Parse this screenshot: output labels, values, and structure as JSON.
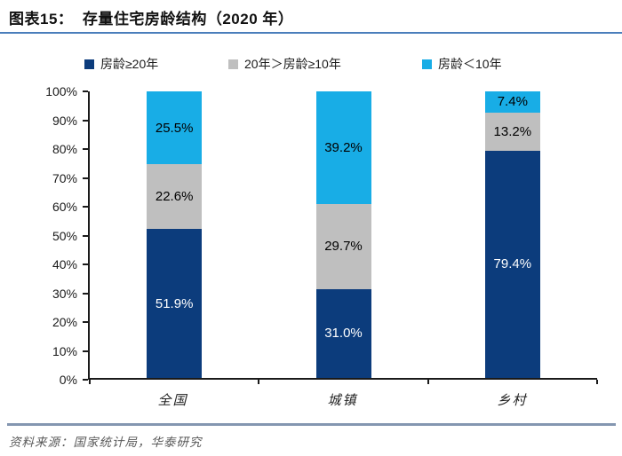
{
  "header": {
    "title": "图表15：  存量住宅房龄结构（2020 年）"
  },
  "chart_data": {
    "type": "bar",
    "subtype": "stacked-column",
    "title": "存量住宅房龄结构（2020 年）",
    "categories": [
      "全国",
      "城镇",
      "乡村"
    ],
    "series": [
      {
        "name": "房龄≥20年",
        "color": "#0c3c7c",
        "label_color": "#ffffff",
        "values": [
          51.9,
          31.0,
          79.4
        ]
      },
      {
        "name": "20年＞房龄≥10年",
        "color": "#bfbfbf",
        "label_color": "#000000",
        "values": [
          22.6,
          29.7,
          13.2
        ]
      },
      {
        "name": "房龄＜10年",
        "color": "#18ade6",
        "label_color": "#000000",
        "values": [
          25.5,
          39.2,
          7.4
        ]
      }
    ],
    "xlabel": "",
    "ylabel": "",
    "ylim": [
      0,
      100
    ],
    "ytick_step": 10,
    "ytick_suffix": "%",
    "value_suffix": "%",
    "value_decimals": 1,
    "legend_position": "top",
    "grid": false
  },
  "footer": {
    "source": "资料来源：国家统计局，华泰研究"
  },
  "colors": {
    "title_rule": "#4a7ebb",
    "footer_rule": "#8496b0",
    "axis": "#1a1a1a"
  }
}
